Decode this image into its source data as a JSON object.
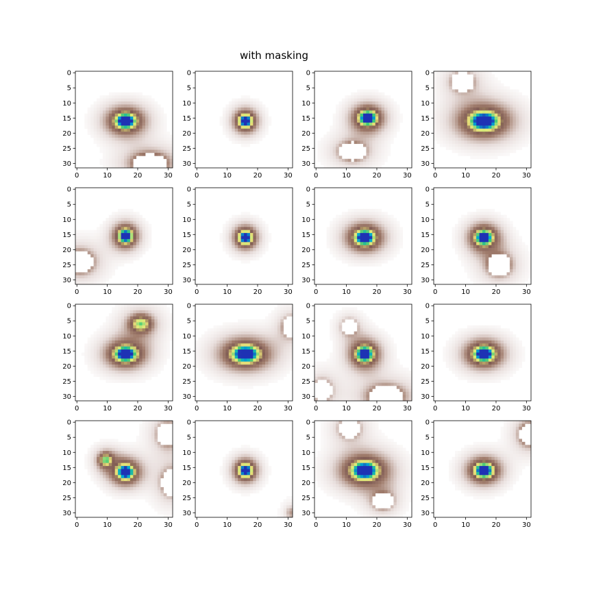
{
  "figure": {
    "title": "with masking"
  },
  "chart_data": {
    "type": "heatmap",
    "title": "with masking",
    "layout": "4x4 grid of image panels",
    "image_size": [
      32,
      32
    ],
    "colormap": "terrain_r",
    "axes": {
      "x_ticks": [
        "0",
        "10",
        "20",
        "30"
      ],
      "y_ticks": [
        "0",
        "5",
        "10",
        "15",
        "20",
        "25",
        "30"
      ],
      "xlim": [
        -0.5,
        31.5
      ],
      "ylim": [
        31.5,
        -0.5
      ],
      "grid": false
    },
    "panels": [
      {
        "sources": [
          {
            "x": 16,
            "y": 16,
            "sx": 2.3,
            "sy": 1.7,
            "a": 1.0
          },
          {
            "x": 24,
            "y": 30,
            "sx": 3.0,
            "sy": 1.8,
            "a": 0.6,
            "mask": true
          }
        ]
      },
      {
        "sources": [
          {
            "x": 16,
            "y": 16,
            "sx": 1.4,
            "sy": 1.4,
            "a": 1.0
          }
        ]
      },
      {
        "sources": [
          {
            "x": 17,
            "y": 15,
            "sx": 1.9,
            "sy": 1.6,
            "a": 1.0
          },
          {
            "x": 12,
            "y": 26,
            "sx": 2.4,
            "sy": 1.7,
            "a": 0.45,
            "mask": true
          }
        ]
      },
      {
        "sources": [
          {
            "x": 16,
            "y": 16,
            "sx": 3.2,
            "sy": 2.1,
            "a": 1.0
          },
          {
            "x": 9,
            "y": 3,
            "sx": 2.2,
            "sy": 1.8,
            "a": 0.35,
            "mask": true
          }
        ]
      },
      {
        "sources": [
          {
            "x": 16,
            "y": 15.5,
            "sx": 1.5,
            "sy": 1.5,
            "a": 1.0
          },
          {
            "x": 1,
            "y": 24,
            "sx": 2.4,
            "sy": 2.0,
            "a": 0.5,
            "mask": true
          }
        ]
      },
      {
        "sources": [
          {
            "x": 16,
            "y": 16,
            "sx": 1.4,
            "sy": 1.4,
            "a": 1.0
          }
        ]
      },
      {
        "sources": [
          {
            "x": 16,
            "y": 16,
            "sx": 2.2,
            "sy": 1.7,
            "a": 1.0
          }
        ]
      },
      {
        "sources": [
          {
            "x": 16,
            "y": 16,
            "sx": 1.8,
            "sy": 1.6,
            "a": 1.0
          },
          {
            "x": 21,
            "y": 25,
            "sx": 2.2,
            "sy": 2.0,
            "a": 0.45,
            "mask": true
          }
        ]
      },
      {
        "sources": [
          {
            "x": 16,
            "y": 16,
            "sx": 2.4,
            "sy": 1.7,
            "a": 1.0
          },
          {
            "x": 21,
            "y": 6,
            "sx": 2.1,
            "sy": 1.7,
            "a": 0.55
          }
        ]
      },
      {
        "sources": [
          {
            "x": 16,
            "y": 16,
            "sx": 3.0,
            "sy": 1.9,
            "a": 1.0
          },
          {
            "x": 31,
            "y": 7,
            "sx": 1.6,
            "sy": 1.8,
            "a": 0.4,
            "mask": true
          }
        ]
      },
      {
        "sources": [
          {
            "x": 16,
            "y": 16,
            "sx": 1.8,
            "sy": 1.7,
            "a": 1.0
          },
          {
            "x": 11,
            "y": 7,
            "sx": 1.4,
            "sy": 1.4,
            "a": 0.35,
            "mask": true
          },
          {
            "x": 2,
            "y": 28,
            "sx": 1.8,
            "sy": 2.0,
            "a": 0.35,
            "mask": true
          },
          {
            "x": 23,
            "y": 30,
            "sx": 3.2,
            "sy": 2.0,
            "a": 0.5,
            "mask": true
          }
        ]
      },
      {
        "sources": [
          {
            "x": 16,
            "y": 16,
            "sx": 2.3,
            "sy": 1.7,
            "a": 1.0
          }
        ]
      },
      {
        "sources": [
          {
            "x": 16,
            "y": 16.5,
            "sx": 1.8,
            "sy": 1.6,
            "a": 1.0
          },
          {
            "x": 9.5,
            "y": 12.5,
            "sx": 1.3,
            "sy": 1.3,
            "a": 0.55
          },
          {
            "x": 30,
            "y": 4,
            "sx": 2.0,
            "sy": 2.2,
            "a": 0.4,
            "mask": true
          },
          {
            "x": 31,
            "y": 20,
            "sx": 1.8,
            "sy": 2.4,
            "a": 0.4,
            "mask": true
          }
        ]
      },
      {
        "sources": [
          {
            "x": 16,
            "y": 16,
            "sx": 1.4,
            "sy": 1.4,
            "a": 1.0
          },
          {
            "x": 31,
            "y": 30,
            "sx": 1.2,
            "sy": 1.5,
            "a": 0.15
          }
        ]
      },
      {
        "sources": [
          {
            "x": 16,
            "y": 16,
            "sx": 2.9,
            "sy": 2.0,
            "a": 1.0
          },
          {
            "x": 11,
            "y": 2,
            "sx": 2.0,
            "sy": 1.8,
            "a": 0.35,
            "mask": true
          },
          {
            "x": 22,
            "y": 26,
            "sx": 1.8,
            "sy": 1.6,
            "a": 0.4,
            "mask": true
          }
        ]
      },
      {
        "sources": [
          {
            "x": 16,
            "y": 16,
            "sx": 2.0,
            "sy": 1.6,
            "a": 1.0
          },
          {
            "x": 31,
            "y": 4,
            "sx": 1.8,
            "sy": 2.0,
            "a": 0.5,
            "mask": true
          }
        ]
      }
    ]
  }
}
